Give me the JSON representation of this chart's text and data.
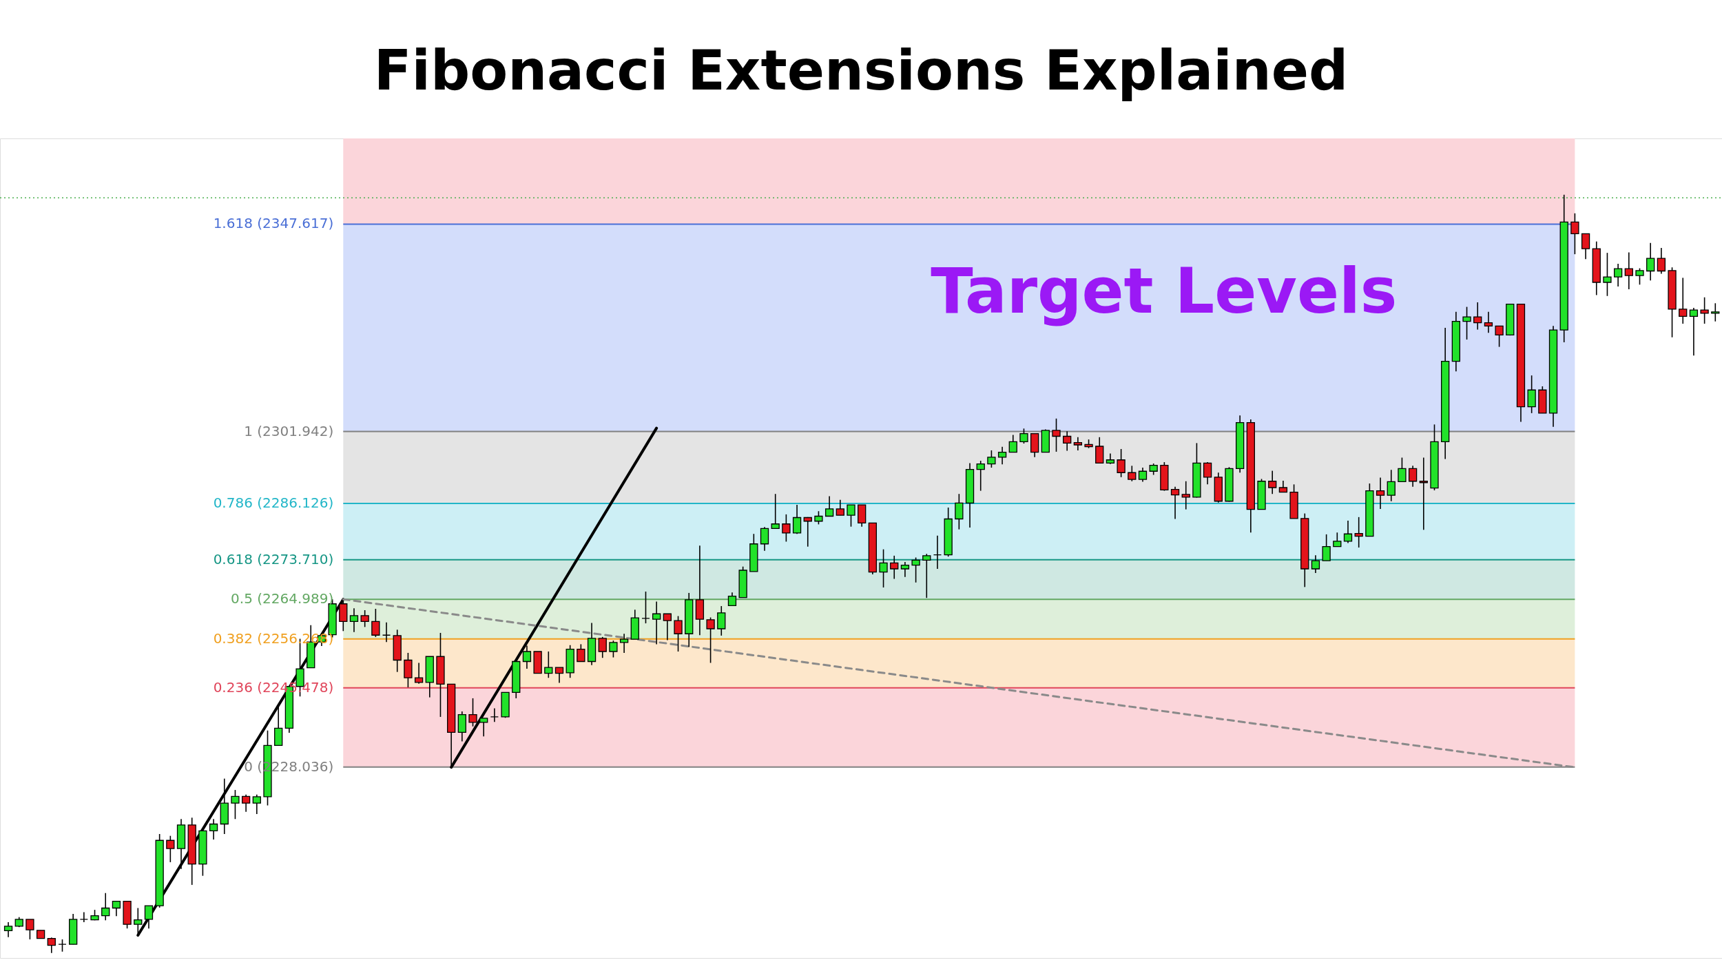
{
  "chart_data": {
    "type": "candlestick",
    "title": "Fibonacci Extensions Explained",
    "categories": [
      null,
      null,
      null,
      null,
      null,
      null,
      null,
      null,
      null,
      null,
      null,
      null,
      null,
      null,
      null,
      null,
      null,
      null,
      null,
      null,
      null,
      null,
      null,
      null,
      null,
      null,
      null,
      null,
      null,
      null,
      null,
      null,
      null,
      null,
      null,
      null,
      null,
      null,
      null,
      null,
      null,
      null,
      null,
      null,
      null,
      null,
      null,
      null,
      null,
      null,
      null,
      null,
      null,
      null,
      null,
      null,
      null,
      null,
      null,
      null,
      null,
      null,
      null,
      null,
      null,
      null,
      null,
      null,
      null,
      null,
      null,
      null,
      null,
      null,
      null,
      null,
      null,
      null,
      null,
      null,
      null,
      null,
      null,
      null,
      null,
      null,
      null,
      null,
      null,
      null,
      null,
      null,
      null,
      null,
      null,
      null,
      null,
      null,
      null,
      null,
      null,
      null,
      null,
      null,
      null,
      null,
      null,
      null,
      null,
      null,
      null,
      null,
      null,
      null,
      null,
      null,
      null,
      null,
      null,
      null,
      null,
      null,
      null,
      null,
      null,
      null,
      null,
      null,
      null,
      null,
      null,
      null,
      null,
      null,
      null,
      null,
      null,
      null,
      null,
      null,
      null,
      null,
      null,
      null,
      null,
      null,
      null,
      null,
      null,
      null,
      null,
      null,
      null,
      null,
      null,
      null,
      null,
      null,
      null
    ],
    "ohlc": [
      [
        2192.0,
        2193.9,
        2190.6,
        2193.0
      ],
      [
        2193.0,
        2195.0,
        2192.8,
        2194.5
      ],
      [
        2194.5,
        2194.5,
        2190.1,
        2192.2
      ],
      [
        2192.1,
        2192.1,
        2190.3,
        2190.3
      ],
      [
        2190.3,
        2190.5,
        2187.1,
        2188.8
      ],
      [
        2189.0,
        2190.1,
        2187.4,
        2189.0
      ],
      [
        2189.0,
        2195.7,
        2189.0,
        2194.5
      ],
      [
        2194.5,
        2196.1,
        2193.9,
        2194.5
      ],
      [
        2194.4,
        2196.6,
        2194.3,
        2195.3
      ],
      [
        2195.3,
        2200.3,
        2194.3,
        2197.0
      ],
      [
        2197.0,
        2198.5,
        2195.2,
        2198.5
      ],
      [
        2198.5,
        2198.5,
        2192.5,
        2193.4
      ],
      [
        2193.4,
        2197.0,
        2191.2,
        2194.4
      ],
      [
        2194.5,
        2197.5,
        2192.5,
        2197.5
      ],
      [
        2197.5,
        2213.3,
        2197.1,
        2211.9
      ],
      [
        2211.9,
        2212.9,
        2207.1,
        2210.1
      ],
      [
        2210.1,
        2216.6,
        2205.6,
        2215.3
      ],
      [
        2215.3,
        2216.9,
        2202.1,
        2206.7
      ],
      [
        2206.7,
        2214.0,
        2204.1,
        2214.0
      ],
      [
        2214.0,
        2216.6,
        2212.1,
        2215.5
      ],
      [
        2215.5,
        2225.5,
        2213.3,
        2220.1
      ],
      [
        2220.1,
        2223.0,
        2216.6,
        2221.6
      ],
      [
        2221.6,
        2222.0,
        2218.2,
        2220.1
      ],
      [
        2220.1,
        2222.0,
        2217.7,
        2221.5
      ],
      [
        2221.5,
        2236.1,
        2219.6,
        2232.8
      ],
      [
        2232.8,
        2241.2,
        2232.8,
        2236.6
      ],
      [
        2236.6,
        2245.8,
        2235.6,
        2245.8
      ],
      [
        2245.8,
        2256.3,
        2243.6,
        2249.7
      ],
      [
        2249.9,
        2259.3,
        2249.9,
        2255.6
      ],
      [
        2255.6,
        2257.0,
        2254.7,
        2257.0
      ],
      [
        2257.2,
        2265.0,
        2256.6,
        2264.0
      ],
      [
        2264.0,
        2264.7,
        2258.0,
        2260.1
      ],
      [
        2260.1,
        2263.0,
        2257.8,
        2261.4
      ],
      [
        2261.4,
        2262.6,
        2258.9,
        2260.1
      ],
      [
        2260.1,
        2262.9,
        2256.7,
        2257.1
      ],
      [
        2257.1,
        2259.9,
        2255.6,
        2257.1
      ],
      [
        2257.0,
        2258.3,
        2249.0,
        2251.6
      ],
      [
        2251.6,
        2253.2,
        2245.6,
        2247.7
      ],
      [
        2247.7,
        2251.0,
        2246.4,
        2246.7
      ],
      [
        2246.7,
        2252.4,
        2243.4,
        2252.4
      ],
      [
        2252.4,
        2257.6,
        2239.1,
        2246.3
      ],
      [
        2246.3,
        2246.3,
        2227.9,
        2235.7
      ],
      [
        2235.7,
        2240.3,
        2233.7,
        2239.6
      ],
      [
        2239.6,
        2243.2,
        2237.0,
        2237.9
      ],
      [
        2237.9,
        2238.8,
        2234.8,
        2238.8
      ],
      [
        2239.1,
        2241.0,
        2238.0,
        2239.1
      ],
      [
        2239.1,
        2244.5,
        2238.9,
        2244.5
      ],
      [
        2244.5,
        2251.3,
        2243.2,
        2251.3
      ],
      [
        2251.3,
        2254.8,
        2249.7,
        2253.5
      ],
      [
        2253.5,
        2253.5,
        2248.7,
        2248.7
      ],
      [
        2248.7,
        2253.5,
        2247.7,
        2250.0
      ],
      [
        2250.0,
        2250.0,
        2246.6,
        2248.7
      ],
      [
        2248.8,
        2254.9,
        2247.7,
        2254.0
      ],
      [
        2254.0,
        2255.1,
        2251.3,
        2251.3
      ],
      [
        2251.3,
        2259.8,
        2250.5,
        2256.4
      ],
      [
        2256.4,
        2256.7,
        2252.1,
        2253.5
      ],
      [
        2253.5,
        2255.9,
        2252.2,
        2255.5
      ],
      [
        2255.5,
        2257.4,
        2253.2,
        2256.2
      ],
      [
        2256.2,
        2262.7,
        2256.2,
        2260.9
      ],
      [
        2260.8,
        2266.7,
        2259.7,
        2260.8
      ],
      [
        2260.6,
        2264.5,
        2255.1,
        2261.8
      ],
      [
        2261.8,
        2261.8,
        2256.0,
        2260.3
      ],
      [
        2260.3,
        2261.3,
        2253.5,
        2257.4
      ],
      [
        2257.4,
        2266.4,
        2254.5,
        2264.9
      ],
      [
        2264.9,
        2276.8,
        2257.1,
        2260.6
      ],
      [
        2260.5,
        2261.0,
        2251.0,
        2258.5
      ],
      [
        2258.5,
        2263.5,
        2257.0,
        2262.0
      ],
      [
        2263.6,
        2266.5,
        2263.5,
        2265.7
      ],
      [
        2265.4,
        2272.2,
        2265.4,
        2271.4
      ],
      [
        2271.1,
        2279.4,
        2271.1,
        2277.2
      ],
      [
        2277.2,
        2280.9,
        2275.7,
        2280.6
      ],
      [
        2280.6,
        2288.2,
        2280.6,
        2281.6
      ],
      [
        2281.6,
        2283.7,
        2277.7,
        2279.6
      ],
      [
        2279.6,
        2285.8,
        2279.4,
        2283.0
      ],
      [
        2283.0,
        2283.1,
        2276.6,
        2282.2
      ],
      [
        2282.2,
        2284.4,
        2281.5,
        2283.3
      ],
      [
        2283.3,
        2287.7,
        2283.3,
        2284.9
      ],
      [
        2284.9,
        2286.9,
        2283.5,
        2283.5
      ],
      [
        2283.5,
        2285.8,
        2281.0,
        2285.8
      ],
      [
        2285.8,
        2285.8,
        2281.0,
        2281.8
      ],
      [
        2281.8,
        2281.8,
        2270.5,
        2271.0
      ],
      [
        2271.0,
        2276.0,
        2267.6,
        2273.0
      ],
      [
        2273.0,
        2274.6,
        2269.5,
        2271.7
      ],
      [
        2271.7,
        2273.2,
        2269.9,
        2272.5
      ],
      [
        2272.5,
        2274.2,
        2268.7,
        2273.6
      ],
      [
        2273.6,
        2275.0,
        2265.3,
        2274.6
      ],
      [
        2274.8,
        2279.0,
        2271.7,
        2274.8
      ],
      [
        2274.8,
        2285.2,
        2274.4,
        2282.7
      ],
      [
        2282.7,
        2288.2,
        2280.4,
        2286.2
      ],
      [
        2286.2,
        2295.0,
        2280.8,
        2293.6
      ],
      [
        2293.6,
        2295.5,
        2288.9,
        2294.8
      ],
      [
        2294.8,
        2297.8,
        2294.0,
        2296.3
      ],
      [
        2296.3,
        2298.6,
        2294.7,
        2297.4
      ],
      [
        2297.4,
        2301.2,
        2297.4,
        2299.7
      ],
      [
        2299.7,
        2302.6,
        2299.3,
        2301.5
      ],
      [
        2301.5,
        2301.5,
        2296.3,
        2297.4
      ],
      [
        2297.4,
        2302.4,
        2297.4,
        2302.2
      ],
      [
        2302.2,
        2304.8,
        2297.5,
        2300.9
      ],
      [
        2300.9,
        2302.0,
        2297.7,
        2299.4
      ],
      [
        2299.5,
        2300.7,
        2297.8,
        2299.0
      ],
      [
        2299.1,
        2300.2,
        2298.3,
        2298.6
      ],
      [
        2298.7,
        2300.7,
        2295.0,
        2295.0
      ],
      [
        2295.0,
        2297.1,
        2294.8,
        2295.7
      ],
      [
        2295.7,
        2298.1,
        2291.9,
        2292.9
      ],
      [
        2292.9,
        2294.4,
        2291.0,
        2291.4
      ],
      [
        2291.4,
        2294.0,
        2290.9,
        2293.2
      ],
      [
        2293.2,
        2294.9,
        2292.4,
        2294.5
      ],
      [
        2294.5,
        2295.2,
        2288.9,
        2289.1
      ],
      [
        2289.2,
        2289.8,
        2282.7,
        2288.0
      ],
      [
        2288.1,
        2291.0,
        2284.8,
        2287.5
      ],
      [
        2287.5,
        2299.4,
        2287.4,
        2295.0
      ],
      [
        2295.0,
        2295.2,
        2290.3,
        2291.9
      ],
      [
        2291.9,
        2292.9,
        2286.3,
        2286.6
      ],
      [
        2286.6,
        2294.1,
        2286.5,
        2293.8
      ],
      [
        2293.8,
        2305.5,
        2292.9,
        2303.9
      ],
      [
        2303.9,
        2304.6,
        2279.7,
        2284.8
      ],
      [
        2284.8,
        2291.5,
        2284.8,
        2291.0
      ],
      [
        2291.0,
        2293.3,
        2288.2,
        2289.6
      ],
      [
        2289.6,
        2291.1,
        2288.6,
        2288.6
      ],
      [
        2288.6,
        2290.3,
        2282.8,
        2282.8
      ],
      [
        2282.8,
        2283.9,
        2267.7,
        2271.7
      ],
      [
        2271.7,
        2274.7,
        2270.8,
        2273.5
      ],
      [
        2273.5,
        2279.3,
        2273.5,
        2276.6
      ],
      [
        2276.6,
        2279.7,
        2276.6,
        2277.8
      ],
      [
        2277.8,
        2282.3,
        2277.4,
        2279.4
      ],
      [
        2279.5,
        2283.1,
        2276.4,
        2278.9
      ],
      [
        2278.9,
        2290.5,
        2278.9,
        2288.9
      ],
      [
        2288.9,
        2291.8,
        2284.9,
        2287.9
      ],
      [
        2287.9,
        2293.5,
        2286.6,
        2290.9
      ],
      [
        2290.9,
        2296.2,
        2290.9,
        2293.8
      ],
      [
        2293.8,
        2294.4,
        2289.8,
        2291.0
      ],
      [
        2291.0,
        2296.2,
        2280.3,
        2290.7
      ],
      [
        2289.5,
        2303.5,
        2289.0,
        2299.7
      ],
      [
        2299.7,
        2324.8,
        2295.9,
        2317.4
      ],
      [
        2317.4,
        2328.3,
        2315.2,
        2326.2
      ],
      [
        2326.2,
        2329.4,
        2322.2,
        2327.2
      ],
      [
        2327.2,
        2330.4,
        2324.4,
        2325.9
      ],
      [
        2325.9,
        2328.3,
        2323.7,
        2325.2
      ],
      [
        2325.2,
        2325.2,
        2320.6,
        2323.2
      ],
      [
        2323.2,
        2330.0,
        2323.1,
        2330.0
      ],
      [
        2330.0,
        2330.0,
        2304.1,
        2307.4
      ],
      [
        2307.4,
        2314.3,
        2306.0,
        2311.1
      ],
      [
        2311.1,
        2311.9,
        2306.0,
        2306.0
      ],
      [
        2306.0,
        2325.2,
        2303.0,
        2324.3
      ],
      [
        2324.3,
        2354.1,
        2321.6,
        2348.1
      ],
      [
        2348.1,
        2350.0,
        2341.0,
        2345.5
      ],
      [
        2345.5,
        2345.5,
        2339.9,
        2342.2
      ],
      [
        2342.2,
        2343.8,
        2332.0,
        2334.8
      ],
      [
        2334.8,
        2341.3,
        2331.8,
        2336.0
      ],
      [
        2336.0,
        2338.9,
        2333.9,
        2337.8
      ],
      [
        2337.8,
        2341.4,
        2333.3,
        2336.3
      ],
      [
        2336.3,
        2337.9,
        2334.3,
        2337.4
      ],
      [
        2337.3,
        2343.5,
        2335.2,
        2340.1
      ],
      [
        2340.1,
        2342.4,
        2336.7,
        2337.3
      ],
      [
        2337.4,
        2338.1,
        2322.7,
        2328.9
      ],
      [
        2328.9,
        2335.8,
        2325.7,
        2327.3
      ],
      [
        2327.3,
        2329.2,
        2318.7,
        2328.7
      ],
      [
        2328.7,
        2331.5,
        2325.7,
        2328.0
      ],
      [
        2328.0,
        2330.2,
        2326.2,
        2328.3
      ]
    ],
    "colors": [
      "#22e22a",
      "#22e22a",
      "#e3141b",
      "#e3141b",
      "#e3141b",
      "#000000",
      "#22e22a",
      "#000000",
      "#22e22a",
      "#22e22a",
      "#22e22a",
      "#e3141b",
      "#22e22a",
      "#22e22a",
      "#22e22a",
      "#e3141b",
      "#22e22a",
      "#e3141b",
      "#22e22a",
      "#22e22a",
      "#22e22a",
      "#22e22a",
      "#e3141b",
      "#22e22a",
      "#22e22a",
      "#22e22a",
      "#22e22a",
      "#22e22a",
      "#22e22a",
      "#22e22a",
      "#22e22a",
      "#e3141b",
      "#22e22a",
      "#e3141b",
      "#e3141b",
      "#000000",
      "#e3141b",
      "#e3141b",
      "#e3141b",
      "#22e22a",
      "#e3141b",
      "#e3141b",
      "#22e22a",
      "#e3141b",
      "#22e22a",
      "#000000",
      "#22e22a",
      "#22e22a",
      "#22e22a",
      "#e3141b",
      "#22e22a",
      "#e3141b",
      "#22e22a",
      "#e3141b",
      "#22e22a",
      "#e3141b",
      "#22e22a",
      "#22e22a",
      "#22e22a",
      "#000000",
      "#22e22a",
      "#e3141b",
      "#e3141b",
      "#22e22a",
      "#e3141b",
      "#e3141b",
      "#22e22a",
      "#22e22a",
      "#22e22a",
      "#22e22a",
      "#22e22a",
      "#22e22a",
      "#e3141b",
      "#22e22a",
      "#e3141b",
      "#22e22a",
      "#22e22a",
      "#e3141b",
      "#22e22a",
      "#e3141b",
      "#e3141b",
      "#22e22a",
      "#e3141b",
      "#22e22a",
      "#22e22a",
      "#22e22a",
      "#000000",
      "#22e22a",
      "#22e22a",
      "#22e22a",
      "#22e22a",
      "#22e22a",
      "#22e22a",
      "#22e22a",
      "#22e22a",
      "#e3141b",
      "#22e22a",
      "#e3141b",
      "#e3141b",
      "#e3141b",
      "#e3141b",
      "#e3141b",
      "#22e22a",
      "#e3141b",
      "#e3141b",
      "#22e22a",
      "#22e22a",
      "#e3141b",
      "#e3141b",
      "#e3141b",
      "#22e22a",
      "#e3141b",
      "#e3141b",
      "#22e22a",
      "#22e22a",
      "#e3141b",
      "#22e22a",
      "#e3141b",
      "#e3141b",
      "#e3141b",
      "#e3141b",
      "#22e22a",
      "#22e22a",
      "#22e22a",
      "#22e22a",
      "#e3141b",
      "#22e22a",
      "#e3141b",
      "#22e22a",
      "#22e22a",
      "#e3141b",
      "#e3141b",
      "#22e22a",
      "#22e22a",
      "#22e22a",
      "#22e22a",
      "#e3141b",
      "#e3141b",
      "#e3141b",
      "#22e22a",
      "#e3141b",
      "#22e22a",
      "#e3141b",
      "#22e22a",
      "#22e22a",
      "#e3141b",
      "#e3141b",
      "#e3141b",
      "#22e22a",
      "#22e22a",
      "#e3141b",
      "#22e22a",
      "#22e22a",
      "#e3141b",
      "#e3141b",
      "#e3141b",
      "#22e22a",
      "#e3141b",
      "#22e22a"
    ],
    "series": [
      {
        "type": "line",
        "values": [
          null,
          null,
          null,
          null,
          null,
          null,
          null,
          null,
          null,
          null,
          null,
          null,
          2191.0,
          null,
          null,
          null,
          null,
          null,
          null,
          null,
          null,
          null,
          null,
          null,
          null,
          null,
          null,
          null,
          null,
          null,
          null,
          2265.0,
          null,
          null,
          null,
          null,
          null,
          null,
          null,
          null,
          null,
          null,
          null,
          null,
          null,
          null,
          null,
          null,
          null,
          null,
          null,
          null,
          null,
          null,
          null,
          null,
          null,
          null,
          null,
          null,
          null,
          null,
          null,
          null,
          null,
          null,
          null,
          null,
          null,
          null,
          null,
          null,
          null,
          null,
          null,
          null,
          null,
          null,
          null,
          null,
          null,
          null,
          null,
          null,
          null,
          null,
          null,
          null,
          null,
          null,
          null,
          null,
          null,
          null,
          null,
          null,
          null,
          null,
          null,
          null,
          null,
          null,
          null,
          null,
          null,
          null,
          null,
          null,
          null,
          null,
          null,
          null,
          null,
          null,
          null,
          null,
          null,
          null,
          null,
          null,
          null,
          null,
          null,
          null,
          null,
          null,
          null,
          null,
          null,
          null,
          null,
          null,
          null,
          null,
          null,
          null,
          null,
          null,
          null,
          null,
          null,
          null,
          null,
          null,
          null,
          null,
          null,
          null,
          null,
          null,
          null,
          null,
          null,
          null,
          null,
          null,
          null,
          null,
          null
        ],
        "color": "#000000",
        "line_style": "solid"
      },
      {
        "type": "line",
        "values": [
          null,
          null,
          null,
          null,
          null,
          null,
          null,
          null,
          null,
          null,
          null,
          null,
          null,
          null,
          null,
          null,
          null,
          null,
          null,
          null,
          null,
          null,
          null,
          null,
          null,
          null,
          null,
          null,
          null,
          null,
          null,
          null,
          null,
          null,
          null,
          null,
          null,
          null,
          null,
          null,
          null,
          2228.0,
          null,
          null,
          null,
          null,
          null,
          null,
          null,
          null,
          null,
          null,
          null,
          null,
          null,
          null,
          null,
          null,
          null,
          null,
          2302.7,
          null,
          null,
          null,
          null,
          null,
          null,
          null,
          null,
          null,
          null,
          null,
          null,
          null,
          null,
          null,
          null,
          null,
          null,
          null,
          null,
          null,
          null,
          null,
          null,
          null,
          null,
          null,
          null,
          null,
          null,
          null,
          null,
          null,
          null,
          null,
          null,
          null,
          null,
          null,
          null,
          null,
          null,
          null,
          null,
          null,
          null,
          null,
          null,
          null,
          null,
          null,
          null,
          null,
          null,
          null,
          null,
          null,
          null,
          null,
          null,
          null,
          null,
          null,
          null,
          null,
          null,
          null,
          null,
          null,
          null,
          null,
          null,
          null,
          null,
          null,
          null,
          null,
          null,
          null,
          null,
          null,
          null,
          null,
          null,
          null,
          null,
          null,
          null,
          null,
          null,
          null,
          null,
          null,
          null,
          null,
          null,
          null,
          null
        ],
        "color": "#000000",
        "line_style": "solid"
      },
      {
        "type": "line",
        "values": [
          null,
          null,
          null,
          null,
          null,
          null,
          null,
          null,
          null,
          null,
          null,
          null,
          null,
          null,
          null,
          null,
          null,
          null,
          null,
          null,
          null,
          null,
          null,
          null,
          null,
          null,
          null,
          null,
          null,
          null,
          null,
          2265.0,
          null,
          null,
          null,
          null,
          null,
          null,
          null,
          null,
          null,
          null,
          null,
          null,
          null,
          null,
          null,
          null,
          null,
          null,
          null,
          null,
          null,
          null,
          null,
          null,
          null,
          null,
          null,
          null,
          null,
          null,
          null,
          null,
          null,
          null,
          null,
          null,
          null,
          null,
          null,
          null,
          null,
          null,
          null,
          null,
          null,
          null,
          null,
          null,
          null,
          null,
          null,
          null,
          null,
          null,
          null,
          null,
          null,
          null,
          null,
          null,
          null,
          null,
          null,
          null,
          null,
          null,
          null,
          null,
          null,
          null,
          null,
          null,
          null,
          null,
          null,
          null,
          null,
          null,
          null,
          null,
          null,
          null,
          null,
          null,
          null,
          null,
          null,
          null,
          null,
          null,
          null,
          null,
          null,
          null,
          null,
          null,
          null,
          null,
          null,
          null,
          null,
          null,
          null,
          null,
          null,
          null,
          null,
          null,
          null,
          null,
          null,
          null,
          null,
          2228.0,
          null,
          null,
          null,
          null,
          null,
          null,
          null,
          null,
          null,
          null,
          null,
          null,
          null
        ],
        "color": "#8a8a8a",
        "line_style": "dashed"
      }
    ],
    "ylim": [
      2186,
      2366.5
    ],
    "tick_labels": false,
    "bands": [
      {
        "axis": "y",
        "from": 2347.617,
        "to": 2366.5,
        "color": "#fbd5da"
      },
      {
        "axis": "y",
        "from": 2301.942,
        "to": 2347.617,
        "color": "#d3ddfb"
      },
      {
        "axis": "y",
        "from": 2286.126,
        "to": 2301.942,
        "color": "#e4e4e4"
      },
      {
        "axis": "y",
        "from": 2273.71,
        "to": 2286.126,
        "color": "#cdeff5"
      },
      {
        "axis": "y",
        "from": 2264.989,
        "to": 2273.71,
        "color": "#cfe8e2"
      },
      {
        "axis": "y",
        "from": 2256.268,
        "to": 2264.989,
        "color": "#deefda"
      },
      {
        "axis": "y",
        "from": 2245.478,
        "to": 2256.268,
        "color": "#fde7cb"
      },
      {
        "axis": "y",
        "from": 2228.036,
        "to": 2245.478,
        "color": "#fbd5da"
      }
    ],
    "ref_lines": [
      {
        "axis": "y",
        "value": 2353.4,
        "color": "#4caf50",
        "line_style": "dotted"
      },
      {
        "axis": "y",
        "value": 2347.617,
        "label": "1.618 (2347.617)",
        "color": "#4a6fd6",
        "line_style": "solid"
      },
      {
        "axis": "y",
        "value": 2301.942,
        "label": "1 (2301.942)",
        "color": "#808080",
        "line_style": "solid"
      },
      {
        "axis": "y",
        "value": 2286.126,
        "label": "0.786 (2286.126)",
        "color": "#22b6c8",
        "line_style": "solid"
      },
      {
        "axis": "y",
        "value": 2273.71,
        "label": "0.618 (2273.710)",
        "color": "#169685",
        "line_style": "solid"
      },
      {
        "axis": "y",
        "value": 2264.989,
        "label": "0.5 (2264.989)",
        "color": "#63a863",
        "line_style": "solid"
      },
      {
        "axis": "y",
        "value": 2256.268,
        "label": "0.382 (2256.268)",
        "color": "#f0a020",
        "line_style": "solid"
      },
      {
        "axis": "y",
        "value": 2245.478,
        "label": "0.236 (2245.478)",
        "color": "#e0455a",
        "line_style": "solid"
      },
      {
        "axis": "y",
        "value": 2228.036,
        "label": "0 (2228.036)",
        "color": "#808080",
        "line_style": "solid"
      }
    ],
    "annotations": [
      "Target Levels"
    ]
  }
}
